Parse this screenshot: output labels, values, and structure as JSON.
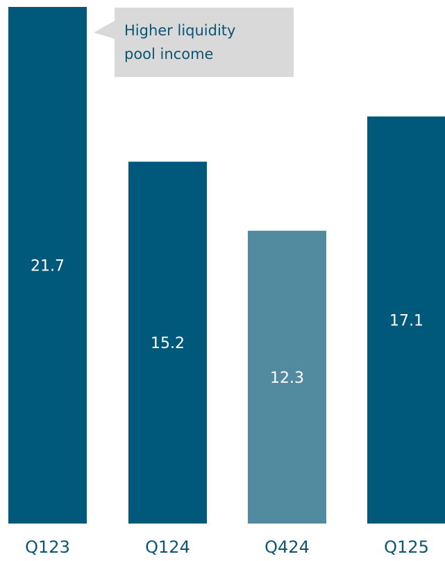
{
  "chart_data": {
    "type": "bar",
    "categories": [
      "Q123",
      "Q124",
      "Q424",
      "Q125"
    ],
    "values": [
      21.7,
      15.2,
      12.3,
      17.1
    ],
    "value_labels": [
      "21.7",
      "15.2",
      "12.3",
      "17.1"
    ],
    "ylim": [
      0,
      21.7
    ],
    "grid": false,
    "legend": "none",
    "highlight_index": 2,
    "annotation": {
      "lines": [
        "Higher liquidity",
        "pool income"
      ],
      "target_category": "Q123"
    }
  },
  "colors": {
    "bar": "#00587A",
    "bar_highlight": "#528AA0",
    "tick_text": "#0B5572",
    "callout_fill": "#D9D9D9",
    "callout_text": "#0B5572",
    "value_text": "#FFFFFF"
  }
}
